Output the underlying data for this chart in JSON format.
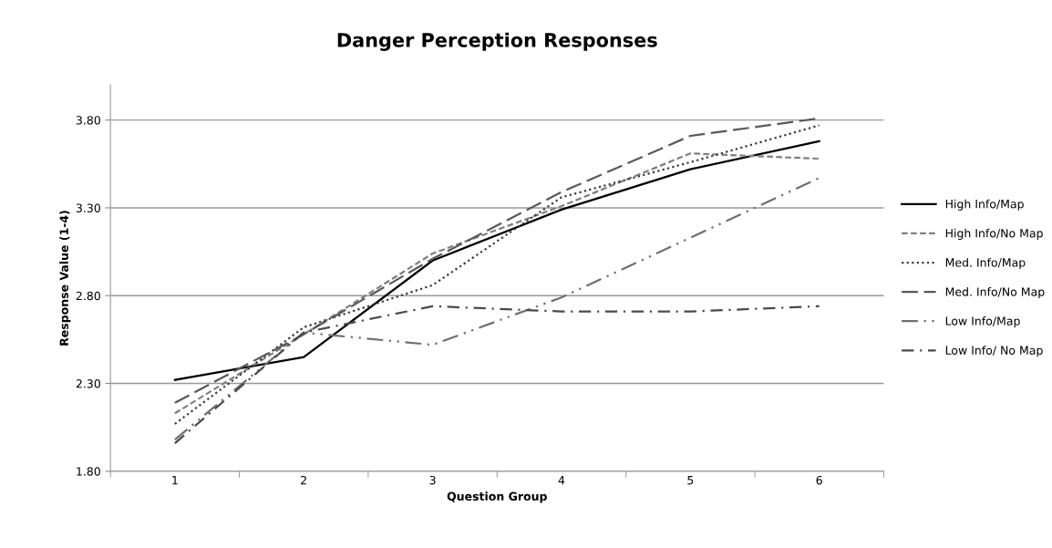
{
  "chart_data": {
    "type": "line",
    "title": "Danger Perception Responses",
    "xlabel": "Question Group",
    "ylabel": "Response Value (1-4)",
    "categories": [
      "1",
      "2",
      "3",
      "4",
      "5",
      "6"
    ],
    "series": [
      {
        "name": "High Info/Map",
        "color": "#000000",
        "line_style": "solid",
        "values": [
          2.32,
          2.45,
          3.0,
          3.29,
          3.52,
          3.68
        ]
      },
      {
        "name": "High Info/No Map",
        "color": "#7f7f7f",
        "line_style": "dashed",
        "values": [
          2.13,
          2.58,
          3.04,
          3.31,
          3.61,
          3.58
        ]
      },
      {
        "name": "Med. Info/Map",
        "color": "#3a3a3a",
        "line_style": "dotted",
        "values": [
          2.07,
          2.62,
          2.86,
          3.36,
          3.56,
          3.77
        ]
      },
      {
        "name": "Med. Info/No Map",
        "color": "#595959",
        "line_style": "longdash",
        "values": [
          2.19,
          2.58,
          3.01,
          3.39,
          3.71,
          3.81
        ]
      },
      {
        "name": "Low Info/Map",
        "color": "#6f6f6f",
        "line_style": "dashdotdot",
        "values": [
          1.98,
          2.59,
          2.52,
          2.79,
          3.13,
          3.47
        ]
      },
      {
        "name": "Low Info/ No Map",
        "color": "#4a4a4a",
        "line_style": "dashdot",
        "values": [
          1.96,
          2.59,
          2.74,
          2.71,
          2.71,
          2.74
        ]
      }
    ],
    "ylim": [
      1.8,
      4.0
    ],
    "yticks": [
      {
        "value": 1.8,
        "label": "1.80"
      },
      {
        "value": 2.3,
        "label": "2.30"
      },
      {
        "value": 2.8,
        "label": "2.80"
      },
      {
        "value": 3.3,
        "label": "3.30"
      },
      {
        "value": 3.8,
        "label": "3.80"
      }
    ],
    "grid": "y",
    "legend": "right",
    "marker": "none"
  }
}
